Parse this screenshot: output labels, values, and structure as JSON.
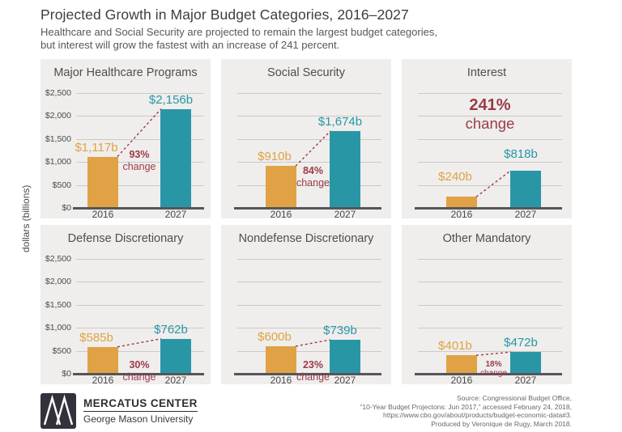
{
  "header": {
    "title": "Projected Growth in Major Budget Categories, 2016–2027",
    "subtitle_lines": [
      "Healthcare and Social Security are projected to remain the largest budget categories,",
      "but interest will grow the fastest with an increase of 241 percent."
    ]
  },
  "y_axis_label": "dollars (billions)",
  "colors": {
    "bar_2016": "#e0a245",
    "bar_2027": "#2996a6",
    "change_text": "#9c3b49",
    "panel_bg": "#efeeec",
    "gridline": "#cbcac7",
    "axis_line": "#55555a"
  },
  "chart_data": {
    "type": "bar",
    "title": "Projected Growth in Major Budget Categories, 2016–2027",
    "ylabel": "dollars (billions)",
    "categories": [
      "2016",
      "2027"
    ],
    "y_axis": {
      "max": 2500,
      "ticks": [
        {
          "value": 0,
          "label": "$0"
        },
        {
          "value": 500,
          "label": "$500"
        },
        {
          "value": 1000,
          "label": "$1,000"
        },
        {
          "value": 1500,
          "label": "$1,500"
        },
        {
          "value": 2000,
          "label": "$2,000"
        },
        {
          "value": 2500,
          "label": "$2,500"
        }
      ]
    },
    "panels": [
      {
        "title": "Major Healthcare Programs",
        "values": [
          1117,
          2156
        ],
        "value_labels": [
          "$1,117b",
          "$2,156b"
        ],
        "percent_change": "93%",
        "change_word": "change",
        "show_y_labels": true,
        "emphasis": false
      },
      {
        "title": "Social Security",
        "values": [
          910,
          1674
        ],
        "value_labels": [
          "$910b",
          "$1,674b"
        ],
        "percent_change": "84%",
        "change_word": "change",
        "show_y_labels": false,
        "emphasis": false
      },
      {
        "title": "Interest",
        "values": [
          240,
          818
        ],
        "value_labels": [
          "$240b",
          "$818b"
        ],
        "percent_change": "241%",
        "change_word": "change",
        "show_y_labels": false,
        "emphasis": true
      },
      {
        "title": "Defense Discretionary",
        "values": [
          585,
          762
        ],
        "value_labels": [
          "$585b",
          "$762b"
        ],
        "percent_change": "30%",
        "change_word": "change",
        "show_y_labels": true,
        "emphasis": false
      },
      {
        "title": "Nondefense Discretionary",
        "values": [
          600,
          739
        ],
        "value_labels": [
          "$600b",
          "$739b"
        ],
        "percent_change": "23%",
        "change_word": "change",
        "show_y_labels": false,
        "emphasis": false
      },
      {
        "title": "Other Mandatory",
        "values": [
          401,
          472
        ],
        "value_labels": [
          "$401b",
          "$472b"
        ],
        "percent_change": "18%",
        "change_word": "change",
        "show_y_labels": false,
        "emphasis": false,
        "small_change": true
      }
    ]
  },
  "footer": {
    "logo": {
      "title": "MERCATUS CENTER",
      "subtitle": "George Mason University"
    },
    "source_lines": [
      "Source: Congressional Budget Office,",
      "“10-Year Budget Projectons: Jun 2017,” accessed February 24, 2018,",
      "https://www.cbo.gov/about/products/budget-economic-data#3.",
      "Produced by Veronique de Rugy, March 2018."
    ]
  }
}
